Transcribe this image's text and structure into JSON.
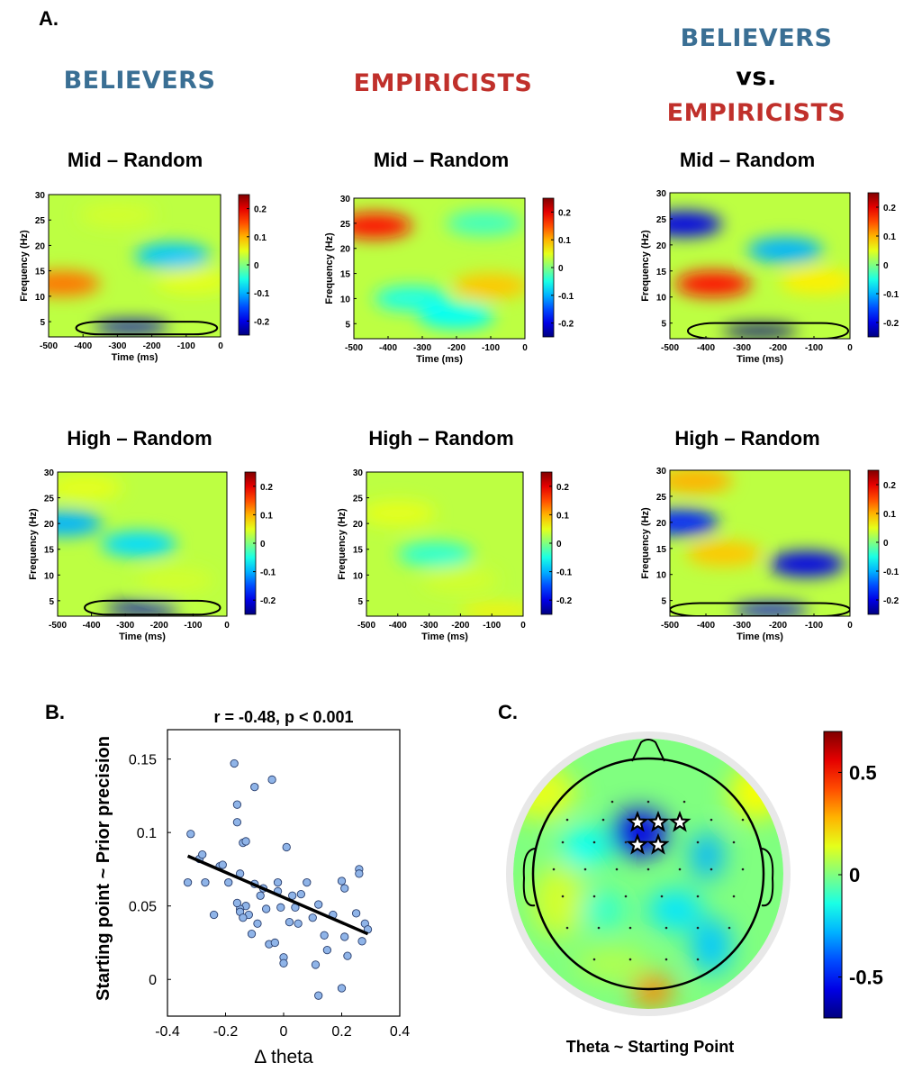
{
  "panel_labels": {
    "a": "A.",
    "b": "B.",
    "c": "C."
  },
  "groups": {
    "believers": "BELIEVERS",
    "empiricists": "EMPIRICISTS",
    "vs_line1": "BELIEVERS",
    "vs_line2": "vs.",
    "vs_line3": "EMPIRICISTS"
  },
  "colors": {
    "believers": "#3a6f94",
    "empiricists": "#c0302b"
  },
  "chart_data": [
    {
      "type": "heatmap",
      "group": "BELIEVERS",
      "title": "Mid – Random",
      "xlabel": "Time (ms)",
      "ylabel": "Frequency (Hz)",
      "xlim": [
        -500,
        0
      ],
      "ylim": [
        2,
        30
      ],
      "xticks": [
        -500,
        -400,
        -300,
        -200,
        -100,
        0
      ],
      "yticks": [
        5,
        10,
        15,
        20,
        25,
        30
      ],
      "colorbar": {
        "ticks": [
          0.2,
          0.1,
          0,
          -0.1,
          -0.2
        ]
      },
      "blobs": [
        {
          "t": -460,
          "f": 12.5,
          "v": 0.13
        },
        {
          "t": -140,
          "f": 18,
          "v": -0.09
        },
        {
          "t": -260,
          "f": 4,
          "v": -0.22
        },
        {
          "t": -80,
          "f": 13,
          "v": 0.05
        },
        {
          "t": -300,
          "f": 26,
          "v": 0.04
        }
      ],
      "significant_cluster": {
        "t": [
          -420,
          -10
        ],
        "f": [
          2.5,
          5
        ]
      }
    },
    {
      "type": "heatmap",
      "group": "EMPIRICISTS",
      "title": "Mid – Random",
      "xlabel": "Time (ms)",
      "ylabel": "Frequency (Hz)",
      "xlim": [
        -500,
        0
      ],
      "ylim": [
        2,
        30
      ],
      "xticks": [
        -500,
        -400,
        -300,
        -200,
        -100,
        0
      ],
      "yticks": [
        5,
        10,
        15,
        20,
        25,
        30
      ],
      "colorbar": {
        "ticks": [
          0.2,
          0.1,
          0,
          -0.1,
          -0.2
        ]
      },
      "blobs": [
        {
          "t": -440,
          "f": 24.5,
          "v": 0.18
        },
        {
          "t": -100,
          "f": 12.5,
          "v": 0.09
        },
        {
          "t": -330,
          "f": 10,
          "v": -0.05
        },
        {
          "t": -200,
          "f": 6.5,
          "v": -0.06
        },
        {
          "t": -120,
          "f": 25,
          "v": -0.03
        }
      ]
    },
    {
      "type": "heatmap",
      "group": "BELIEVERS vs. EMPIRICISTS",
      "title": "Mid – Random",
      "xlabel": "Time (ms)",
      "ylabel": "Frequency (Hz)",
      "xlim": [
        -500,
        0
      ],
      "ylim": [
        2,
        30
      ],
      "xticks": [
        -500,
        -400,
        -300,
        -200,
        -100,
        0
      ],
      "yticks": [
        5,
        10,
        15,
        20,
        25,
        30
      ],
      "colorbar": {
        "ticks": [
          0.2,
          0.1,
          0,
          -0.1,
          -0.2
        ]
      },
      "blobs": [
        {
          "t": -460,
          "f": 24,
          "v": -0.2
        },
        {
          "t": -380,
          "f": 12.5,
          "v": 0.18
        },
        {
          "t": -180,
          "f": 19,
          "v": -0.1
        },
        {
          "t": -250,
          "f": 3.5,
          "v": -0.26
        },
        {
          "t": -90,
          "f": 13,
          "v": 0.07
        }
      ],
      "significant_cluster": {
        "t": [
          -450,
          -5
        ],
        "f": [
          2,
          5
        ]
      }
    },
    {
      "type": "heatmap",
      "group": "BELIEVERS",
      "title": "High – Random",
      "xlabel": "Time (ms)",
      "ylabel": "Frequency (Hz)",
      "xlim": [
        -500,
        0
      ],
      "ylim": [
        2,
        30
      ],
      "xticks": [
        -500,
        -400,
        -300,
        -200,
        -100,
        0
      ],
      "yticks": [
        5,
        10,
        15,
        20,
        25,
        30
      ],
      "colorbar": {
        "ticks": [
          0.2,
          0.1,
          0,
          -0.1,
          -0.2
        ]
      },
      "blobs": [
        {
          "t": -480,
          "f": 20,
          "v": -0.1
        },
        {
          "t": -260,
          "f": 16,
          "v": -0.08
        },
        {
          "t": -250,
          "f": 3.5,
          "v": -0.22
        },
        {
          "t": -420,
          "f": 27,
          "v": 0.05
        },
        {
          "t": -150,
          "f": 9,
          "v": 0.04
        }
      ],
      "significant_cluster": {
        "t": [
          -420,
          -20
        ],
        "f": [
          2.3,
          5
        ]
      }
    },
    {
      "type": "heatmap",
      "group": "EMPIRICISTS",
      "title": "High – Random",
      "xlabel": "Time (ms)",
      "ylabel": "Frequency (Hz)",
      "xlim": [
        -500,
        0
      ],
      "ylim": [
        2,
        30
      ],
      "xticks": [
        -500,
        -400,
        -300,
        -200,
        -100,
        0
      ],
      "yticks": [
        5,
        10,
        15,
        20,
        25,
        30
      ],
      "colorbar": {
        "ticks": [
          0.2,
          0.1,
          0,
          -0.1,
          -0.2
        ]
      },
      "blobs": [
        {
          "t": -400,
          "f": 22,
          "v": 0.05
        },
        {
          "t": -280,
          "f": 14,
          "v": -0.04
        },
        {
          "t": -80,
          "f": 3,
          "v": 0.07
        },
        {
          "t": -200,
          "f": 9,
          "v": 0.04
        }
      ]
    },
    {
      "type": "heatmap",
      "group": "BELIEVERS vs. EMPIRICISTS",
      "title": "High – Random",
      "xlabel": "Time (ms)",
      "ylabel": "Frequency (Hz)",
      "xlim": [
        -500,
        0
      ],
      "ylim": [
        2,
        30
      ],
      "xticks": [
        -500,
        -400,
        -300,
        -200,
        -100,
        0
      ],
      "yticks": [
        5,
        10,
        15,
        20,
        25,
        30
      ],
      "colorbar": {
        "ticks": [
          0.2,
          0.1,
          0,
          -0.1,
          -0.2
        ]
      },
      "blobs": [
        {
          "t": -470,
          "f": 20,
          "v": -0.17
        },
        {
          "t": -120,
          "f": 12,
          "v": -0.2
        },
        {
          "t": -220,
          "f": 3.2,
          "v": -0.2
        },
        {
          "t": -430,
          "f": 28,
          "v": 0.1
        },
        {
          "t": -350,
          "f": 14,
          "v": 0.09
        }
      ],
      "significant_cluster": {
        "t": [
          -500,
          0
        ],
        "f": [
          2,
          4.5
        ]
      }
    },
    {
      "type": "scatter",
      "title": "r = -0.48, p < 0.001",
      "xlabel": "Δ theta",
      "ylabel": "Starting point ~ Prior precision",
      "xlim": [
        -0.4,
        0.4
      ],
      "ylim": [
        -0.025,
        0.17
      ],
      "xticks": [
        -0.4,
        -0.2,
        0,
        0.2,
        0.4
      ],
      "yticks": [
        0,
        0.05,
        0.1,
        0.15
      ],
      "points": [
        [
          -0.33,
          0.066
        ],
        [
          -0.32,
          0.099
        ],
        [
          -0.29,
          0.082
        ],
        [
          -0.28,
          0.085
        ],
        [
          -0.27,
          0.066
        ],
        [
          -0.24,
          0.044
        ],
        [
          -0.22,
          0.077
        ],
        [
          -0.21,
          0.078
        ],
        [
          -0.19,
          0.066
        ],
        [
          -0.17,
          0.147
        ],
        [
          -0.16,
          0.119
        ],
        [
          -0.16,
          0.107
        ],
        [
          -0.15,
          0.072
        ],
        [
          -0.14,
          0.093
        ],
        [
          -0.13,
          0.094
        ],
        [
          -0.13,
          0.05
        ],
        [
          -0.12,
          0.044
        ],
        [
          -0.11,
          0.031
        ],
        [
          -0.1,
          0.131
        ],
        [
          -0.1,
          0.065
        ],
        [
          -0.09,
          0.038
        ],
        [
          -0.08,
          0.057
        ],
        [
          -0.07,
          0.062
        ],
        [
          -0.06,
          0.048
        ],
        [
          -0.05,
          0.024
        ],
        [
          -0.04,
          0.136
        ],
        [
          -0.03,
          0.025
        ],
        [
          -0.02,
          0.066
        ],
        [
          -0.02,
          0.06
        ],
        [
          -0.01,
          0.049
        ],
        [
          0.0,
          0.015
        ],
        [
          0.0,
          0.011
        ],
        [
          0.01,
          0.09
        ],
        [
          0.02,
          0.039
        ],
        [
          0.03,
          0.057
        ],
        [
          0.04,
          0.049
        ],
        [
          0.05,
          0.038
        ],
        [
          0.06,
          0.058
        ],
        [
          0.08,
          0.066
        ],
        [
          0.1,
          0.042
        ],
        [
          0.11,
          0.01
        ],
        [
          0.12,
          0.051
        ],
        [
          0.12,
          -0.011
        ],
        [
          0.14,
          0.03
        ],
        [
          0.15,
          0.02
        ],
        [
          0.17,
          0.044
        ],
        [
          0.2,
          0.067
        ],
        [
          0.2,
          -0.006
        ],
        [
          0.21,
          0.062
        ],
        [
          0.21,
          0.029
        ],
        [
          0.22,
          0.016
        ],
        [
          0.25,
          0.045
        ],
        [
          0.26,
          0.075
        ],
        [
          0.26,
          0.072
        ],
        [
          0.27,
          0.026
        ],
        [
          0.28,
          0.038
        ],
        [
          0.29,
          0.034
        ],
        [
          -0.15,
          0.048
        ],
        [
          -0.16,
          0.052
        ],
        [
          -0.15,
          0.046
        ],
        [
          -0.14,
          0.042
        ]
      ],
      "fit_line": {
        "x": [
          -0.33,
          0.29
        ],
        "y": [
          0.084,
          0.031
        ]
      }
    },
    {
      "type": "heatmap",
      "subtype": "topoplot",
      "title": "Theta ~ Starting Point",
      "colorbar": {
        "ticks": [
          0.5,
          0,
          -0.5
        ]
      },
      "significant_electrodes": 5
    }
  ]
}
